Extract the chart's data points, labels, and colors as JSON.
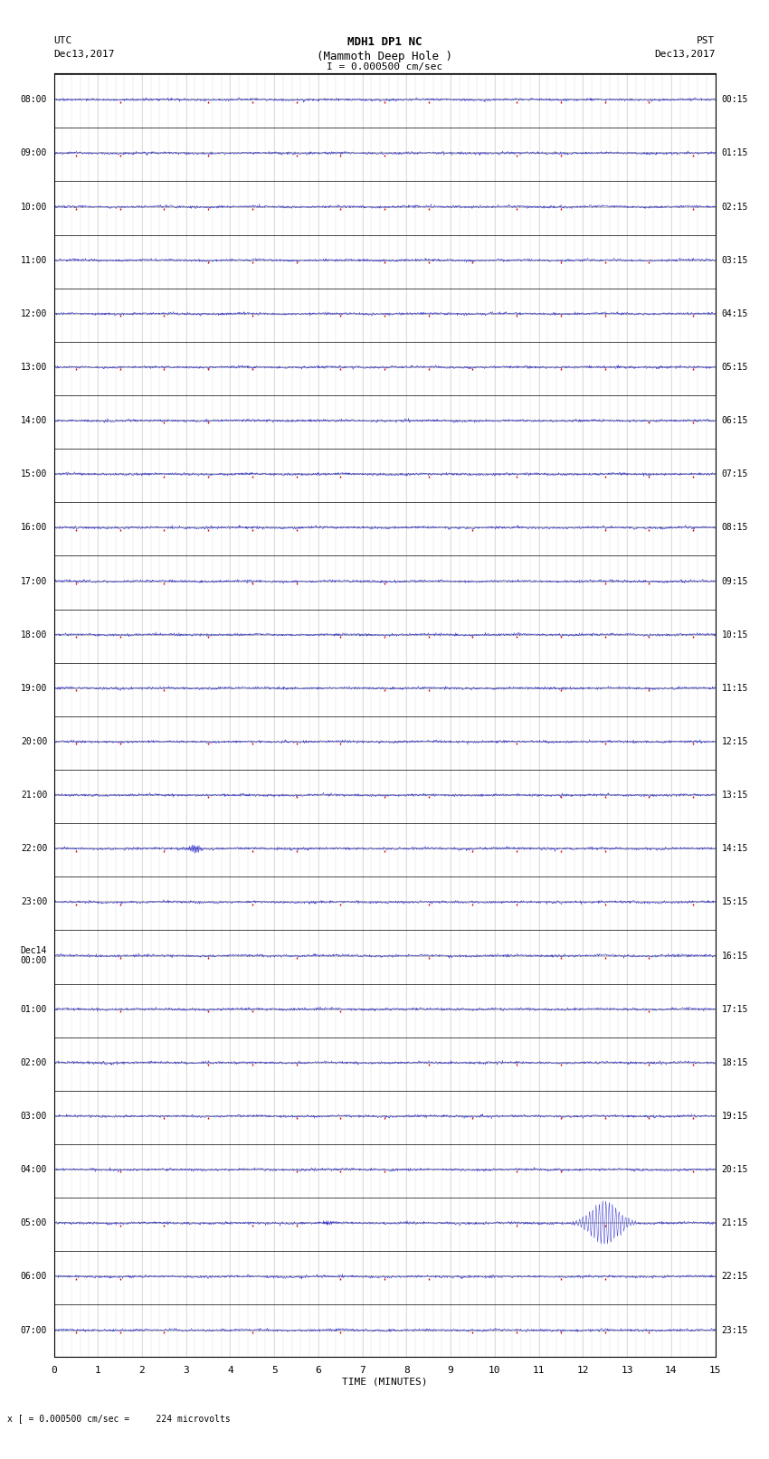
{
  "title_line1": "MDH1 DP1 NC",
  "title_line2": "(Mammoth Deep Hole )",
  "scale_label": "I = 0.000500 cm/sec",
  "left_header": "UTC",
  "right_header": "PST",
  "left_date": "Dec13,2017",
  "right_date": "Dec13,2017",
  "bottom_label": "TIME (MINUTES)",
  "bottom_note": "x [ = 0.000500 cm/sec =     224 microvolts",
  "utc_times": [
    "08:00",
    "09:00",
    "10:00",
    "11:00",
    "12:00",
    "13:00",
    "14:00",
    "15:00",
    "16:00",
    "17:00",
    "18:00",
    "19:00",
    "20:00",
    "21:00",
    "22:00",
    "23:00",
    "Dec14\n00:00",
    "01:00",
    "02:00",
    "03:00",
    "04:00",
    "05:00",
    "06:00",
    "07:00"
  ],
  "pst_times": [
    "00:15",
    "01:15",
    "02:15",
    "03:15",
    "04:15",
    "05:15",
    "06:15",
    "07:15",
    "08:15",
    "09:15",
    "10:15",
    "11:15",
    "12:15",
    "13:15",
    "14:15",
    "15:15",
    "16:15",
    "17:15",
    "18:15",
    "19:15",
    "20:15",
    "21:15",
    "22:15",
    "23:15"
  ],
  "n_rows": 24,
  "n_minutes": 15,
  "x_ticks": [
    0,
    1,
    2,
    3,
    4,
    5,
    6,
    7,
    8,
    9,
    10,
    11,
    12,
    13,
    14,
    15
  ],
  "background_color": "#ffffff",
  "grid_color": "#cccccc",
  "trace_color_blue": "#0000cc",
  "trace_color_red": "#cc0000",
  "noise_amplitude": 0.04,
  "earthquake_row": 21,
  "earthquake_minute": 12.5,
  "earthquake_amplitude": 0.8,
  "event2_row": 14,
  "event2_minute": 3.2,
  "event2_amplitude": 0.15,
  "event3_row": 21,
  "event3_minute": 6.2,
  "event3_amplitude": 0.08
}
